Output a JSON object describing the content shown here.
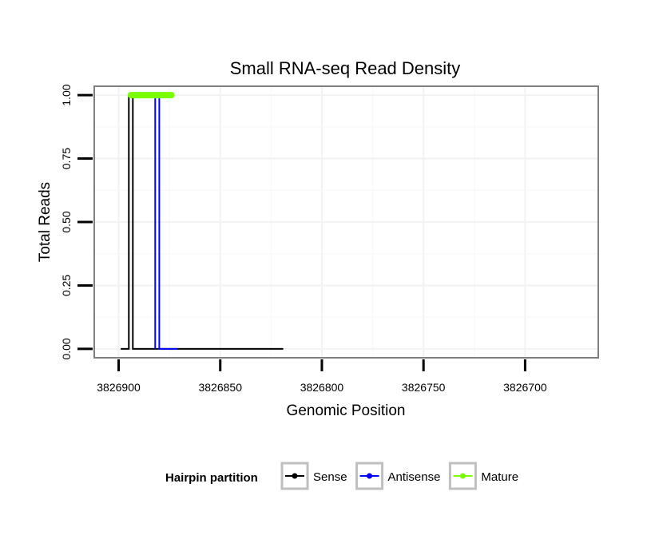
{
  "chart_data": {
    "type": "line",
    "title": "Small RNA-seq Read Density",
    "xlabel": "Genomic Position",
    "ylabel": "Total Reads",
    "x_reversed": true,
    "xlim": [
      3826912,
      3826664
    ],
    "ylim": [
      -0.035,
      1.035
    ],
    "x_ticks": [
      3826900,
      3826850,
      3826800,
      3826750,
      3826700
    ],
    "x_tick_labels": [
      "3826900",
      "3826850",
      "3826800",
      "3826750",
      "3826700"
    ],
    "y_ticks": [
      0,
      0.25,
      0.5,
      0.75,
      1
    ],
    "y_tick_labels": [
      "0.00",
      "0.25",
      "0.50",
      "0.75",
      "1.00"
    ],
    "grid": true,
    "series": [
      {
        "name": "Sense",
        "color": "#000000",
        "style": "line",
        "x": [
          3826899,
          3826895,
          3826895,
          3826893,
          3826893,
          3826885,
          3826885,
          3826883,
          3826883,
          3826819
        ],
        "y": [
          0,
          0,
          1,
          1,
          0,
          0,
          0,
          0,
          0,
          0
        ]
      },
      {
        "name": "Antisense",
        "color": "#0000ff",
        "style": "line",
        "x": [
          3826882,
          3826882,
          3826880,
          3826880,
          3826873,
          3826873,
          3826871,
          3826871
        ],
        "y": [
          0,
          1,
          1,
          0,
          0,
          0,
          0,
          0
        ]
      },
      {
        "name": "Mature",
        "color": "#7cfc00",
        "style": "thick-segment",
        "x": [
          3826894,
          3826874
        ],
        "y": [
          1,
          1
        ]
      }
    ],
    "legend": {
      "title": "Hairpin partition",
      "position": "bottom",
      "items": [
        {
          "label": "Sense",
          "color": "#000000"
        },
        {
          "label": "Antisense",
          "color": "#0000ff"
        },
        {
          "label": "Mature",
          "color": "#7cfc00"
        }
      ]
    }
  }
}
